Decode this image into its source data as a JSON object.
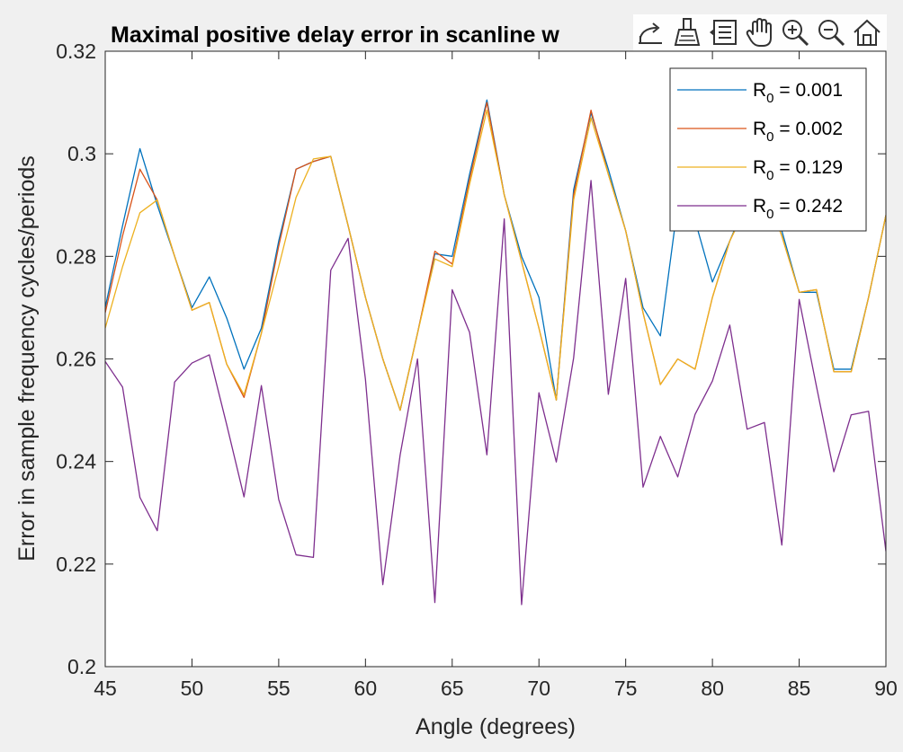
{
  "chart_data": {
    "type": "line",
    "title": "Maximal positive delay error in scanline w",
    "xlabel": "Angle (degrees)",
    "ylabel": "Error in sample frequency cycles/periods",
    "xlim": [
      45,
      90
    ],
    "ylim": [
      0.2,
      0.32
    ],
    "xticks": [
      "45",
      "50",
      "55",
      "60",
      "65",
      "70",
      "75",
      "80",
      "85",
      "90"
    ],
    "yticks": [
      "0.2",
      "0.22",
      "0.24",
      "0.26",
      "0.28",
      "0.3",
      "0.32"
    ],
    "grid": false,
    "legend_position": "top-right",
    "x": [
      45,
      46,
      47,
      48,
      49,
      50,
      51,
      52,
      53,
      54,
      55,
      56,
      57,
      58,
      59,
      60,
      61,
      62,
      63,
      64,
      65,
      66,
      67,
      68,
      69,
      70,
      71,
      72,
      73,
      74,
      75,
      76,
      77,
      78,
      79,
      80,
      81,
      82,
      83,
      84,
      85,
      86,
      87,
      88,
      89,
      90
    ],
    "series": [
      {
        "name_base": "R",
        "name_sub": "0",
        "name_value": " = 0.001",
        "color": "#0072bd",
        "values": [
          0.27,
          0.286,
          0.301,
          0.29,
          0.28,
          0.27,
          0.276,
          0.268,
          0.258,
          0.266,
          0.283,
          0.297,
          0.2985,
          0.2995,
          0.286,
          0.272,
          0.26,
          0.25,
          0.265,
          0.2805,
          0.28,
          0.296,
          0.3105,
          0.292,
          0.28,
          0.272,
          0.252,
          0.293,
          0.308,
          0.297,
          0.285,
          0.27,
          0.2645,
          0.29,
          0.287,
          0.275,
          0.283,
          0.291,
          0.294,
          0.285,
          0.273,
          0.273,
          0.258,
          0.258,
          0.272,
          0.288
        ]
      },
      {
        "name_base": "R",
        "name_sub": "0",
        "name_value": " = 0.002",
        "color": "#d95319",
        "values": [
          0.269,
          0.284,
          0.297,
          0.291,
          0.28,
          0.2695,
          0.271,
          0.259,
          0.2525,
          0.265,
          0.282,
          0.297,
          0.2985,
          0.2995,
          0.286,
          0.272,
          0.26,
          0.25,
          0.265,
          0.281,
          0.2785,
          0.295,
          0.31,
          0.292,
          0.279,
          0.266,
          0.252,
          0.292,
          0.3085,
          0.296,
          0.285,
          0.269,
          0.255,
          0.26,
          0.258,
          0.272,
          0.283,
          0.29,
          0.293,
          0.284,
          0.273,
          0.2735,
          0.2575,
          0.2575,
          0.272,
          0.288
        ]
      },
      {
        "name_base": "R",
        "name_sub": "0",
        "name_value": " = 0.129",
        "color": "#edb120",
        "values": [
          0.266,
          0.278,
          0.2885,
          0.291,
          0.28,
          0.2695,
          0.271,
          0.259,
          0.253,
          0.265,
          0.278,
          0.2915,
          0.299,
          0.2995,
          0.286,
          0.272,
          0.26,
          0.25,
          0.265,
          0.2795,
          0.278,
          0.294,
          0.3085,
          0.292,
          0.279,
          0.266,
          0.252,
          0.291,
          0.307,
          0.296,
          0.285,
          0.269,
          0.255,
          0.26,
          0.258,
          0.272,
          0.283,
          0.29,
          0.293,
          0.284,
          0.273,
          0.2735,
          0.2575,
          0.2575,
          0.272,
          0.288
        ]
      },
      {
        "name_base": "R",
        "name_sub": "0",
        "name_value": " = 0.242",
        "color": "#7e2f8e",
        "values": [
          0.2595,
          0.2545,
          0.233,
          0.2265,
          0.2555,
          0.2592,
          0.2608,
          0.2472,
          0.2331,
          0.2548,
          0.2326,
          0.2218,
          0.2213,
          0.2773,
          0.2835,
          0.256,
          0.216,
          0.2413,
          0.26,
          0.2125,
          0.2735,
          0.2652,
          0.2413,
          0.2873,
          0.2121,
          0.2534,
          0.2399,
          0.2602,
          0.2948,
          0.2531,
          0.2757,
          0.235,
          0.2449,
          0.237,
          0.2492,
          0.2557,
          0.2666,
          0.2463,
          0.2476,
          0.2237,
          0.2716,
          0.2546,
          0.238,
          0.2491,
          0.2498,
          0.2225
        ]
      }
    ]
  },
  "toolbar": {
    "buttons": [
      {
        "name": "export-icon",
        "label": "Export"
      },
      {
        "name": "brush-icon",
        "label": "Brush"
      },
      {
        "name": "datatip-icon",
        "label": "Data tips"
      },
      {
        "name": "pan-icon",
        "label": "Pan"
      },
      {
        "name": "zoom-in-icon",
        "label": "Zoom in"
      },
      {
        "name": "zoom-out-icon",
        "label": "Zoom out"
      },
      {
        "name": "home-icon",
        "label": "Restore view"
      }
    ]
  }
}
